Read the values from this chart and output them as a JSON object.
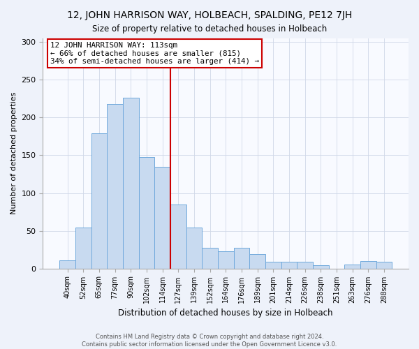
{
  "title": "12, JOHN HARRISON WAY, HOLBEACH, SPALDING, PE12 7JH",
  "subtitle": "Size of property relative to detached houses in Holbeach",
  "xlabel": "Distribution of detached houses by size in Holbeach",
  "ylabel": "Number of detached properties",
  "bar_labels": [
    "40sqm",
    "52sqm",
    "65sqm",
    "77sqm",
    "90sqm",
    "102sqm",
    "114sqm",
    "127sqm",
    "139sqm",
    "152sqm",
    "164sqm",
    "176sqm",
    "189sqm",
    "201sqm",
    "214sqm",
    "226sqm",
    "238sqm",
    "251sqm",
    "263sqm",
    "276sqm",
    "288sqm"
  ],
  "bar_heights": [
    11,
    54,
    179,
    218,
    226,
    148,
    135,
    85,
    54,
    27,
    23,
    27,
    19,
    9,
    9,
    9,
    4,
    0,
    5,
    10,
    9
  ],
  "bar_color": "#c8daf0",
  "bar_edge_color": "#6fa8dc",
  "reference_line_index": 6,
  "reference_line_color": "#cc0000",
  "annotation_line1": "12 JOHN HARRISON WAY: 113sqm",
  "annotation_line2": "← 66% of detached houses are smaller (815)",
  "annotation_line3": "34% of semi-detached houses are larger (414) →",
  "annotation_box_color": "#ffffff",
  "annotation_box_edge": "#cc0000",
  "ylim": [
    0,
    305
  ],
  "yticks": [
    0,
    50,
    100,
    150,
    200,
    250,
    300
  ],
  "footer_line1": "Contains HM Land Registry data © Crown copyright and database right 2024.",
  "footer_line2": "Contains public sector information licensed under the Open Government Licence v3.0.",
  "bg_color": "#eef2fa",
  "plot_bg_color": "#f8faff",
  "grid_color": "#d0d8e8"
}
